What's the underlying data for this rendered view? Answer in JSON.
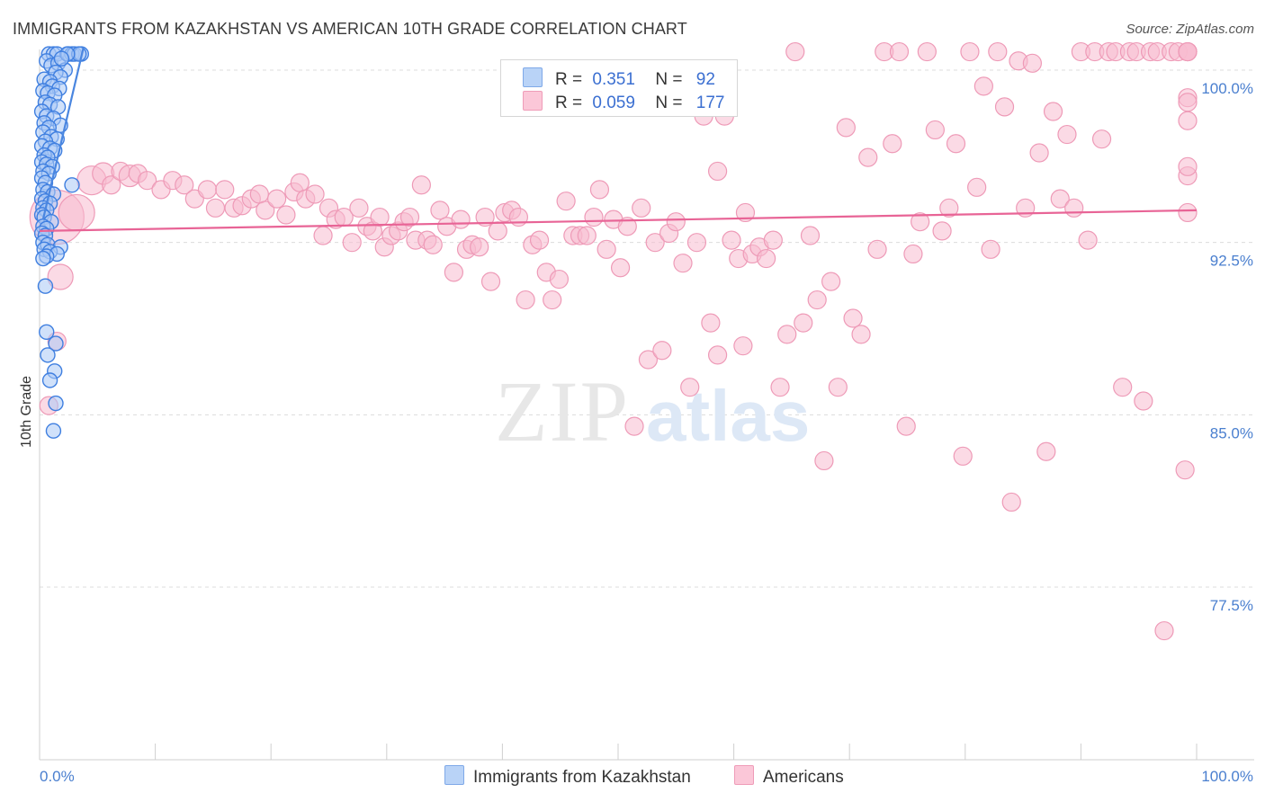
{
  "header": {
    "title": "IMMIGRANTS FROM KAZAKHSTAN VS AMERICAN 10TH GRADE CORRELATION CHART",
    "source": "Source: ZipAtlas.com"
  },
  "watermark": {
    "zip": "ZIP",
    "atlas": "atlas"
  },
  "legend": {
    "r_label": "R =",
    "n_label": "N =",
    "rows": [
      {
        "r": "0.351",
        "n": "92",
        "color": "#a9c8f5",
        "border": "#6a9de8"
      },
      {
        "r": "0.059",
        "n": "177",
        "color": "#f8bcd0",
        "border": "#ee8fae"
      }
    ]
  },
  "bottom_legend": [
    {
      "label": "Immigrants from Kazakhstan",
      "color": "#b9d3f7",
      "border": "#7fa9e8"
    },
    {
      "label": "Americans",
      "color": "#fbc7d8",
      "border": "#ef9cb8"
    }
  ],
  "chart_data": {
    "type": "scatter",
    "title": "IMMIGRANTS FROM KAZAKHSTAN VS AMERICAN 10TH GRADE CORRELATION CHART",
    "xlabel": "",
    "ylabel": "10th Grade",
    "xlim": [
      0,
      100
    ],
    "ylim": [
      70.0,
      101.0
    ],
    "x_tick_labels": [
      "0.0%",
      "100.0%"
    ],
    "y_ticks": [
      100.0,
      92.5,
      85.0,
      77.5
    ],
    "y_tick_labels": [
      "100.0%",
      "92.5%",
      "85.0%",
      "77.5%"
    ],
    "grid": "horizontal dashed",
    "legend_position": "top-center",
    "series": [
      {
        "name": "Immigrants from Kazakhstan",
        "color": "#4a86e0",
        "fill": "#a9c8f5",
        "trend": {
          "x0": 0.3,
          "y0": 93.5,
          "x1": 3.8,
          "y1": 101.0
        },
        "points": [
          [
            0.8,
            100.7
          ],
          [
            1.2,
            100.7
          ],
          [
            1.5,
            100.7
          ],
          [
            2.5,
            100.7
          ],
          [
            2.8,
            100.7
          ],
          [
            3.0,
            100.7
          ],
          [
            3.6,
            100.7
          ],
          [
            3.4,
            100.7
          ],
          [
            0.6,
            100.4
          ],
          [
            1.0,
            100.2
          ],
          [
            1.6,
            100.3
          ],
          [
            2.2,
            100.0
          ],
          [
            1.4,
            99.9
          ],
          [
            1.8,
            99.7
          ],
          [
            0.4,
            99.6
          ],
          [
            0.9,
            99.5
          ],
          [
            1.1,
            99.3
          ],
          [
            1.7,
            99.2
          ],
          [
            0.3,
            99.1
          ],
          [
            0.7,
            99.0
          ],
          [
            1.3,
            98.9
          ],
          [
            0.5,
            98.6
          ],
          [
            0.9,
            98.5
          ],
          [
            1.6,
            98.4
          ],
          [
            0.2,
            98.2
          ],
          [
            0.6,
            98.0
          ],
          [
            1.2,
            97.9
          ],
          [
            0.4,
            97.7
          ],
          [
            1.8,
            97.6
          ],
          [
            0.8,
            97.5
          ],
          [
            0.3,
            97.3
          ],
          [
            1.0,
            97.1
          ],
          [
            1.5,
            97.0
          ],
          [
            0.5,
            96.9
          ],
          [
            0.2,
            96.7
          ],
          [
            0.9,
            96.6
          ],
          [
            1.3,
            96.5
          ],
          [
            0.4,
            96.3
          ],
          [
            0.7,
            96.2
          ],
          [
            0.2,
            96.0
          ],
          [
            0.6,
            95.9
          ],
          [
            1.1,
            95.8
          ],
          [
            0.3,
            95.6
          ],
          [
            0.8,
            95.5
          ],
          [
            0.2,
            95.3
          ],
          [
            0.5,
            95.1
          ],
          [
            2.8,
            95.0
          ],
          [
            0.3,
            94.8
          ],
          [
            0.7,
            94.7
          ],
          [
            1.2,
            94.6
          ],
          [
            0.2,
            94.4
          ],
          [
            0.5,
            94.3
          ],
          [
            0.9,
            94.2
          ],
          [
            0.3,
            94.0
          ],
          [
            0.6,
            93.9
          ],
          [
            0.2,
            93.7
          ],
          [
            0.4,
            93.6
          ],
          [
            1.0,
            93.4
          ],
          [
            0.3,
            93.2
          ],
          [
            0.6,
            93.1
          ],
          [
            0.2,
            92.9
          ],
          [
            0.5,
            92.8
          ],
          [
            0.3,
            92.5
          ],
          [
            0.7,
            92.4
          ],
          [
            1.8,
            92.3
          ],
          [
            0.4,
            92.2
          ],
          [
            0.9,
            92.1
          ],
          [
            1.5,
            92.0
          ],
          [
            0.6,
            91.9
          ],
          [
            0.3,
            91.8
          ],
          [
            0.5,
            90.6
          ],
          [
            0.6,
            88.6
          ],
          [
            1.4,
            88.1
          ],
          [
            0.7,
            87.6
          ],
          [
            1.3,
            86.9
          ],
          [
            0.9,
            86.5
          ],
          [
            1.4,
            85.5
          ],
          [
            1.2,
            84.3
          ],
          [
            2.4,
            100.7
          ],
          [
            1.9,
            100.5
          ]
        ]
      },
      {
        "name": "Americans",
        "color": "#e86496",
        "fill": "#f8bcd0",
        "trend": {
          "x0": 0.0,
          "y0": 93.0,
          "x1": 100.0,
          "y1": 93.9
        },
        "points": [
          [
            1.5,
            93.6,
            30
          ],
          [
            3.2,
            93.8,
            20
          ],
          [
            1.8,
            91.0,
            14
          ],
          [
            1.5,
            88.2,
            10
          ],
          [
            0.8,
            85.4,
            10
          ],
          [
            4.5,
            95.2,
            16
          ],
          [
            5.5,
            95.5,
            12
          ],
          [
            6.2,
            95.0,
            10
          ],
          [
            7.0,
            95.6,
            10
          ],
          [
            7.8,
            95.4,
            12
          ],
          [
            8.5,
            95.5,
            10
          ],
          [
            9.3,
            95.2,
            10
          ],
          [
            10.5,
            94.8,
            10
          ],
          [
            11.5,
            95.2,
            10
          ],
          [
            12.5,
            95.0,
            10
          ],
          [
            13.4,
            94.4,
            10
          ],
          [
            14.5,
            94.8,
            10
          ],
          [
            15.2,
            94.0,
            10
          ],
          [
            16.0,
            94.8,
            10
          ],
          [
            16.8,
            94.0,
            10
          ],
          [
            17.5,
            94.1,
            10
          ],
          [
            18.3,
            94.4,
            10
          ],
          [
            19.0,
            94.6,
            10
          ],
          [
            19.5,
            93.9,
            10
          ],
          [
            20.5,
            94.4,
            10
          ],
          [
            21.3,
            93.7,
            10
          ],
          [
            22.0,
            94.7,
            10
          ],
          [
            22.5,
            95.1,
            10
          ],
          [
            23.0,
            94.4,
            10
          ],
          [
            23.8,
            94.6,
            10
          ],
          [
            24.5,
            92.8,
            10
          ],
          [
            25.0,
            94.0,
            10
          ],
          [
            25.6,
            93.5,
            10
          ],
          [
            26.3,
            93.6,
            10
          ],
          [
            27.0,
            92.5,
            10
          ],
          [
            27.6,
            94.0,
            10
          ],
          [
            28.3,
            93.2,
            10
          ],
          [
            28.8,
            93.0,
            10
          ],
          [
            29.4,
            93.6,
            10
          ],
          [
            29.8,
            92.3,
            10
          ],
          [
            30.4,
            92.8,
            10
          ],
          [
            31.0,
            93.0,
            10
          ],
          [
            31.5,
            93.4,
            10
          ],
          [
            32.0,
            93.6,
            10
          ],
          [
            32.5,
            92.6,
            10
          ],
          [
            33.0,
            95.0,
            10
          ],
          [
            33.5,
            92.6,
            10
          ],
          [
            34.0,
            92.4,
            10
          ],
          [
            34.6,
            93.9,
            10
          ],
          [
            35.2,
            93.2,
            10
          ],
          [
            35.8,
            91.2,
            10
          ],
          [
            36.4,
            93.5,
            10
          ],
          [
            36.9,
            92.2,
            10
          ],
          [
            37.4,
            92.4,
            10
          ],
          [
            38.0,
            92.3,
            10
          ],
          [
            38.5,
            93.6,
            10
          ],
          [
            39.0,
            90.8,
            10
          ],
          [
            39.6,
            93.0,
            10
          ],
          [
            40.2,
            93.8,
            10
          ],
          [
            40.8,
            93.9,
            10
          ],
          [
            41.4,
            93.6,
            10
          ],
          [
            42.0,
            90.0,
            10
          ],
          [
            42.6,
            92.4,
            10
          ],
          [
            43.2,
            92.6,
            10
          ],
          [
            43.8,
            91.2,
            10
          ],
          [
            44.3,
            90.0,
            10
          ],
          [
            44.9,
            90.9,
            10
          ],
          [
            45.5,
            94.3,
            10
          ],
          [
            46.1,
            92.8,
            10
          ],
          [
            46.7,
            92.8,
            10
          ],
          [
            47.3,
            92.8,
            10
          ],
          [
            47.9,
            93.6,
            10
          ],
          [
            48.4,
            94.8,
            10
          ],
          [
            49.0,
            92.2,
            10
          ],
          [
            49.6,
            93.5,
            10
          ],
          [
            50.2,
            91.4,
            10
          ],
          [
            50.8,
            93.2,
            10
          ],
          [
            51.4,
            84.5,
            10
          ],
          [
            52.0,
            94.0,
            10
          ],
          [
            52.6,
            87.4,
            10
          ],
          [
            53.2,
            92.5,
            10
          ],
          [
            53.8,
            87.8,
            10
          ],
          [
            54.4,
            92.9,
            10
          ],
          [
            55.0,
            93.4,
            10
          ],
          [
            55.6,
            91.6,
            10
          ],
          [
            56.2,
            86.2,
            10
          ],
          [
            56.8,
            92.5,
            10
          ],
          [
            57.4,
            98.0,
            10
          ],
          [
            58.0,
            89.0,
            10
          ],
          [
            58.6,
            95.6,
            10
          ],
          [
            59.2,
            98.0,
            10
          ],
          [
            59.8,
            92.6,
            10
          ],
          [
            60.4,
            91.8,
            10
          ],
          [
            61.0,
            93.8,
            10
          ],
          [
            61.6,
            92.0,
            10
          ],
          [
            62.2,
            92.3,
            10
          ],
          [
            62.8,
            91.8,
            10
          ],
          [
            63.4,
            92.6,
            10
          ],
          [
            64.0,
            86.2,
            10
          ],
          [
            64.6,
            88.5,
            10
          ],
          [
            65.3,
            100.8,
            10
          ],
          [
            66.0,
            89.0,
            10
          ],
          [
            66.6,
            92.8,
            10
          ],
          [
            67.2,
            90.0,
            10
          ],
          [
            67.8,
            83.0,
            10
          ],
          [
            68.4,
            90.8,
            10
          ],
          [
            69.0,
            86.2,
            10
          ],
          [
            69.7,
            97.5,
            10
          ],
          [
            70.3,
            89.2,
            10
          ],
          [
            71.0,
            88.5,
            10
          ],
          [
            71.6,
            96.2,
            10
          ],
          [
            72.4,
            92.2,
            10
          ],
          [
            73.0,
            100.8,
            10
          ],
          [
            73.7,
            96.8,
            10
          ],
          [
            74.3,
            100.8,
            10
          ],
          [
            74.9,
            84.5,
            10
          ],
          [
            75.5,
            92.0,
            10
          ],
          [
            76.1,
            93.4,
            10
          ],
          [
            76.7,
            100.8,
            10
          ],
          [
            77.4,
            97.4,
            10
          ],
          [
            78.0,
            93.0,
            10
          ],
          [
            78.6,
            94.0,
            10
          ],
          [
            79.2,
            96.8,
            10
          ],
          [
            79.8,
            83.2,
            10
          ],
          [
            80.4,
            100.8,
            10
          ],
          [
            81.0,
            94.9,
            10
          ],
          [
            81.6,
            99.3,
            10
          ],
          [
            82.2,
            92.2,
            10
          ],
          [
            82.8,
            100.8,
            10
          ],
          [
            83.4,
            98.4,
            10
          ],
          [
            84.0,
            81.2,
            10
          ],
          [
            84.6,
            100.4,
            10
          ],
          [
            85.2,
            94.0,
            10
          ],
          [
            85.8,
            100.3,
            10
          ],
          [
            86.4,
            96.4,
            10
          ],
          [
            87.0,
            83.4,
            10
          ],
          [
            87.6,
            98.2,
            10
          ],
          [
            88.2,
            94.4,
            10
          ],
          [
            88.8,
            97.2,
            10
          ],
          [
            89.4,
            94.0,
            10
          ],
          [
            90.0,
            100.8,
            10
          ],
          [
            90.6,
            92.6,
            10
          ],
          [
            91.2,
            100.8,
            10
          ],
          [
            91.8,
            97.0,
            10
          ],
          [
            92.4,
            100.8,
            10
          ],
          [
            93.0,
            100.8,
            10
          ],
          [
            93.6,
            86.2,
            10
          ],
          [
            94.2,
            100.8,
            10
          ],
          [
            94.8,
            100.8,
            10
          ],
          [
            95.4,
            85.6,
            10
          ],
          [
            96.0,
            100.8,
            10
          ],
          [
            96.6,
            100.8,
            10
          ],
          [
            97.2,
            75.6,
            10
          ],
          [
            97.8,
            100.8,
            10
          ],
          [
            98.4,
            100.8,
            10
          ],
          [
            99.0,
            82.6,
            10
          ],
          [
            99.6,
            100.8,
            10
          ],
          [
            100.2,
            98.8,
            10
          ],
          [
            100.8,
            100.8,
            10
          ],
          [
            101.4,
            95.4,
            10
          ],
          [
            102.0,
            95.8,
            10
          ],
          [
            102.6,
            97.8,
            10
          ],
          [
            103.2,
            100.8,
            10
          ],
          [
            103.8,
            100.8,
            10
          ],
          [
            104.4,
            98.6,
            10
          ],
          [
            105.0,
            93.8,
            10
          ],
          [
            60.8,
            88.0,
            10
          ],
          [
            58.6,
            87.6,
            10
          ]
        ]
      }
    ]
  }
}
